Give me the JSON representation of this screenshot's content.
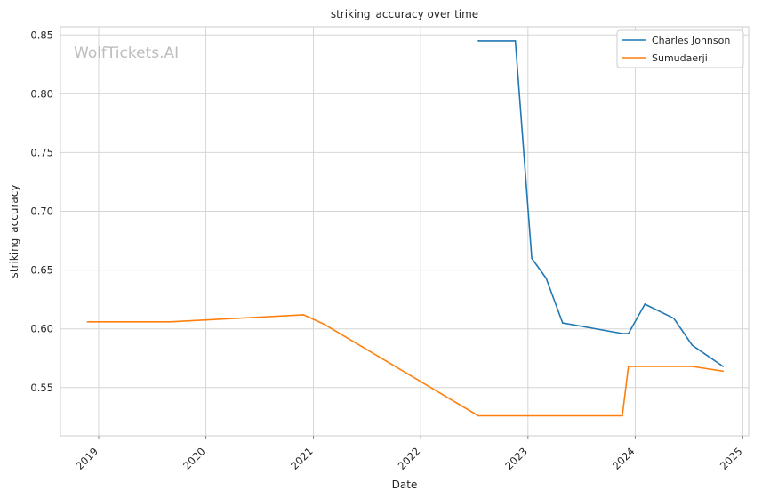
{
  "chart_data": {
    "type": "line",
    "title": "striking_accuracy over time",
    "xlabel": "Date",
    "ylabel": "striking_accuracy",
    "watermark": "WolfTickets.AI",
    "x_ticks": [
      "2019",
      "2020",
      "2021",
      "2022",
      "2023",
      "2024",
      "2025"
    ],
    "y_ticks": [
      "0.55",
      "0.60",
      "0.65",
      "0.70",
      "0.75",
      "0.80",
      "0.85"
    ],
    "xlim": [
      "2018-08-24",
      "2025-01-21"
    ],
    "ylim": [
      0.509,
      0.857
    ],
    "grid": true,
    "legend_position": "top-right",
    "series": [
      {
        "name": "Charles Johnson",
        "color": "#1f77b4",
        "points": [
          {
            "x": "2022-07-16",
            "y": 0.845
          },
          {
            "x": "2022-11-19",
            "y": 0.845
          },
          {
            "x": "2023-01-14",
            "y": 0.66
          },
          {
            "x": "2023-03-04",
            "y": 0.643
          },
          {
            "x": "2023-04-29",
            "y": 0.605
          },
          {
            "x": "2023-11-18",
            "y": 0.596
          },
          {
            "x": "2023-12-09",
            "y": 0.596
          },
          {
            "x": "2024-02-03",
            "y": 0.621
          },
          {
            "x": "2024-05-11",
            "y": 0.609
          },
          {
            "x": "2024-07-13",
            "y": 0.586
          },
          {
            "x": "2024-10-26",
            "y": 0.568
          }
        ]
      },
      {
        "name": "Sumudaerji",
        "color": "#ff7f0e",
        "points": [
          {
            "x": "2018-11-24",
            "y": 0.606
          },
          {
            "x": "2019-09-01",
            "y": 0.606
          },
          {
            "x": "2020-11-28",
            "y": 0.612
          },
          {
            "x": "2021-02-06",
            "y": 0.604
          },
          {
            "x": "2022-07-16",
            "y": 0.526
          },
          {
            "x": "2023-11-18",
            "y": 0.526
          },
          {
            "x": "2023-12-09",
            "y": 0.568
          },
          {
            "x": "2024-07-13",
            "y": 0.568
          },
          {
            "x": "2024-10-26",
            "y": 0.564
          }
        ]
      }
    ]
  }
}
